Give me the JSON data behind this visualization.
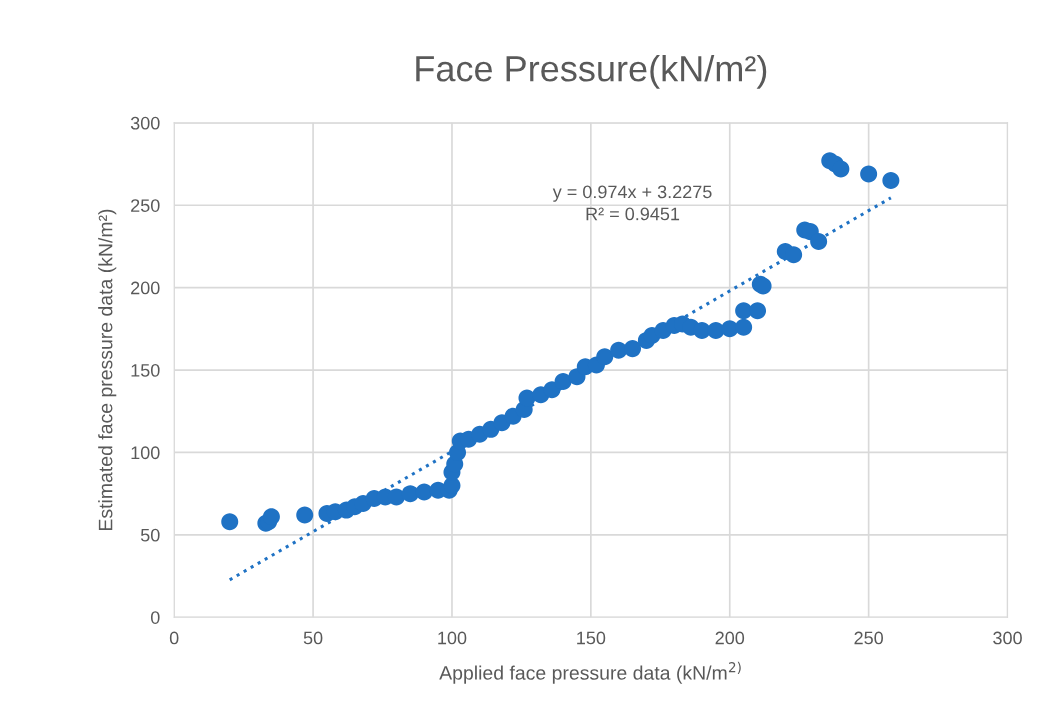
{
  "chart_data": {
    "type": "scatter",
    "title": "Face Pressure(kN/m²)",
    "xlabel": "Applied face pressure data (kN/m$^{2)}$",
    "ylabel": "Estimated face pressure data (kN/m²)",
    "xlim": [
      0,
      300
    ],
    "ylim": [
      0,
      300
    ],
    "xticks": [
      0,
      50,
      100,
      150,
      200,
      250,
      300
    ],
    "yticks": [
      0,
      50,
      100,
      150,
      200,
      250,
      300
    ],
    "grid": true,
    "legend": false,
    "marker": "circle",
    "annotations": [
      "y = 0.974x + 3.2275\nR² = 0.9451"
    ],
    "series": [
      {
        "color": "#1f72c4",
        "x": [
          20,
          33,
          34,
          35,
          47,
          55,
          58,
          62,
          65,
          68,
          72,
          76,
          80,
          85,
          90,
          95,
          99,
          100,
          100,
          101,
          102,
          103,
          106,
          110,
          114,
          118,
          122,
          126,
          127,
          132,
          136,
          140,
          145,
          148,
          152,
          155,
          160,
          165,
          170,
          172,
          176,
          180,
          183,
          186,
          190,
          195,
          200,
          205,
          205,
          210,
          211,
          212,
          220,
          223,
          227,
          229,
          232,
          236,
          238,
          240,
          250,
          258
        ],
        "values": [
          58,
          57,
          58,
          61,
          62,
          63,
          64,
          65,
          67,
          69,
          72,
          73,
          73,
          75,
          76,
          77,
          77,
          80,
          88,
          93,
          100,
          107,
          108,
          111,
          114,
          118,
          122,
          126,
          133,
          135,
          138,
          143,
          146,
          152,
          153,
          158,
          162,
          163,
          168,
          171,
          174,
          177,
          178,
          176,
          174,
          174,
          175,
          176,
          186,
          186,
          202,
          201,
          222,
          220,
          235,
          234,
          228,
          277,
          275,
          272,
          269,
          265
        ]
      },
      {
        "type": "line",
        "color": "#1f72c4",
        "line_style": "dotted",
        "marker": "none",
        "x": [
          20,
          258
        ],
        "values": [
          22.7,
          254.5
        ]
      }
    ]
  }
}
